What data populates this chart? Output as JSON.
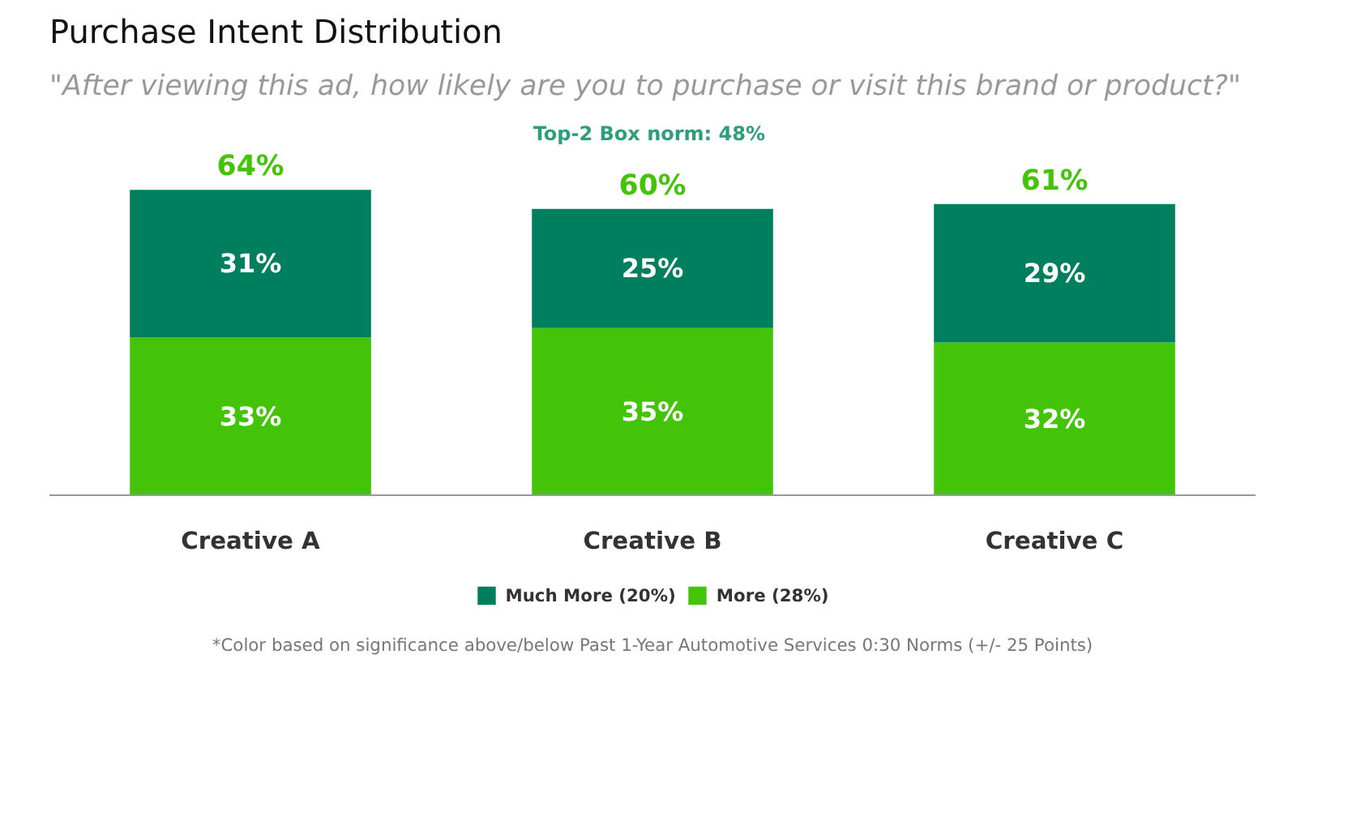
{
  "chart_data": {
    "type": "bar",
    "stacked": true,
    "title": "Purchase Intent Distribution",
    "subtitle": "\"After viewing this ad, how likely are you to purchase or visit this brand or product?\"",
    "annotations": [
      "Top-2 Box norm:  48%",
      "*Color based on significance above/below Past 1-Year Automotive Services 0:30 Norms (+/- 25 Points)"
    ],
    "categories": [
      "Creative A",
      "Creative B",
      "Creative C"
    ],
    "series": [
      {
        "name": "More (28%)",
        "color": "#44c408",
        "values": [
          33,
          35,
          32
        ],
        "value_labels": [
          "33%",
          "35%",
          "32%"
        ]
      },
      {
        "name": "Much More (20%)",
        "color": "#007f5f",
        "values": [
          31,
          25,
          29
        ],
        "value_labels": [
          "31%",
          "25%",
          "29%"
        ]
      }
    ],
    "totals": [
      "64%",
      "60%",
      "61%"
    ],
    "legend": "bottom"
  }
}
